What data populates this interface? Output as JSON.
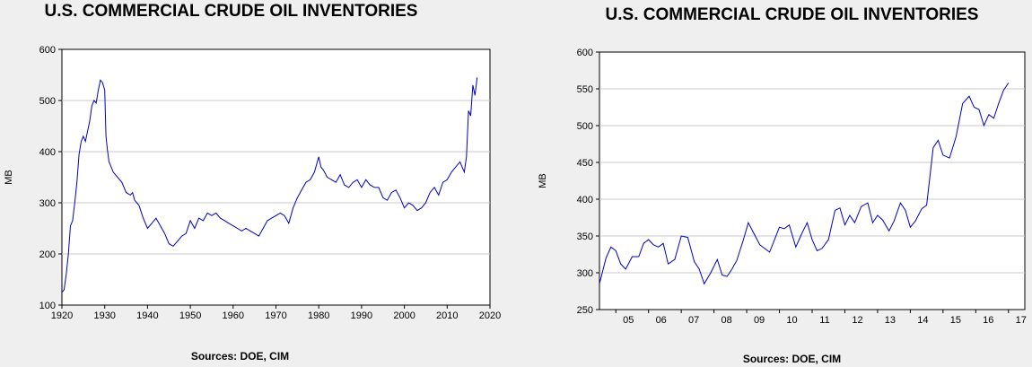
{
  "chart_data": [
    {
      "type": "line",
      "title": "U.S. COMMERCIAL CRUDE OIL INVENTORIES",
      "xlabel": "",
      "ylabel": "MB",
      "source": "Sources:  DOE, CIM",
      "xlim": [
        1920,
        2020
      ],
      "ylim": [
        100,
        600
      ],
      "x_ticks": [
        1920,
        1930,
        1940,
        1950,
        1960,
        1970,
        1980,
        1990,
        2000,
        2010,
        2020
      ],
      "y_ticks": [
        100,
        200,
        300,
        400,
        500,
        600
      ],
      "grid": true,
      "line_color": "#0000c0",
      "series": [
        {
          "x": [
            1920,
            1920.5,
            1921,
            1921.5,
            1922,
            1922.5,
            1923,
            1923.5,
            1924,
            1924.5,
            1925,
            1925.5,
            1926,
            1926.5,
            1927,
            1927.5,
            1928,
            1928.5,
            1929,
            1929.5,
            1930,
            1930.3,
            1930.6,
            1931,
            1931.5,
            1932,
            1932.5,
            1933,
            1934,
            1935,
            1936,
            1936.5,
            1937,
            1938,
            1939,
            1940,
            1941,
            1942,
            1943,
            1944,
            1945,
            1946,
            1947,
            1948,
            1949,
            1950,
            1951,
            1952,
            1953,
            1954,
            1955,
            1956,
            1957,
            1958,
            1959,
            1960,
            1961,
            1962,
            1963,
            1964,
            1965,
            1966,
            1967,
            1968,
            1969,
            1970,
            1971,
            1972,
            1973,
            1974,
            1975,
            1976,
            1977,
            1978,
            1979,
            1980,
            1980.5,
            1981,
            1982,
            1983,
            1984,
            1985,
            1986,
            1987,
            1988,
            1989,
            1990,
            1991,
            1992,
            1993,
            1994,
            1995,
            1996,
            1997,
            1998,
            1999,
            2000,
            2001,
            2002,
            2003,
            2004,
            2005,
            2006,
            2007,
            2008,
            2009,
            2010,
            2011,
            2012,
            2013,
            2014,
            2014.5,
            2015,
            2015.5,
            2016,
            2016.5,
            2017
          ],
          "values": [
            125,
            130,
            160,
            200,
            255,
            265,
            300,
            340,
            395,
            420,
            430,
            420,
            440,
            460,
            490,
            500,
            495,
            520,
            540,
            535,
            520,
            430,
            405,
            380,
            370,
            360,
            355,
            350,
            340,
            320,
            315,
            320,
            305,
            295,
            270,
            250,
            260,
            270,
            255,
            240,
            220,
            215,
            225,
            235,
            240,
            265,
            250,
            270,
            265,
            280,
            275,
            280,
            270,
            265,
            260,
            255,
            250,
            245,
            250,
            245,
            240,
            235,
            250,
            265,
            270,
            275,
            280,
            275,
            260,
            290,
            310,
            325,
            340,
            345,
            360,
            390,
            370,
            365,
            350,
            345,
            340,
            355,
            335,
            330,
            340,
            345,
            330,
            345,
            335,
            330,
            330,
            310,
            305,
            320,
            325,
            310,
            290,
            300,
            295,
            285,
            290,
            300,
            320,
            330,
            315,
            340,
            345,
            360,
            370,
            380,
            360,
            390,
            480,
            470,
            530,
            510,
            545
          ]
        }
      ]
    },
    {
      "type": "line",
      "title": "U.S. COMMERCIAL CRUDE OIL INVENTORIES",
      "xlabel": "",
      "ylabel": "MB",
      "source": "Sources:  DOE, CIM",
      "xlim": [
        2004.5,
        2017.5
      ],
      "ylim": [
        250,
        600
      ],
      "x_ticks": [
        2005,
        2006,
        2007,
        2008,
        2009,
        2010,
        2011,
        2012,
        2013,
        2014,
        2015,
        2016,
        2017
      ],
      "x_tick_labels": [
        "05",
        "06",
        "07",
        "08",
        "09",
        "10",
        "11",
        "12",
        "13",
        "14",
        "15",
        "16",
        "17"
      ],
      "y_ticks": [
        250,
        300,
        350,
        400,
        450,
        500,
        550,
        600
      ],
      "grid": true,
      "line_color": "#0000c0",
      "series": [
        {
          "x": [
            2004.5,
            2004.7,
            2004.85,
            2005.0,
            2005.15,
            2005.3,
            2005.5,
            2005.7,
            2005.85,
            2006.0,
            2006.15,
            2006.3,
            2006.45,
            2006.6,
            2006.8,
            2007.0,
            2007.2,
            2007.4,
            2007.55,
            2007.7,
            2007.9,
            2008.1,
            2008.25,
            2008.4,
            2008.55,
            2008.7,
            2008.9,
            2009.05,
            2009.2,
            2009.4,
            2009.55,
            2009.7,
            2009.85,
            2010.0,
            2010.15,
            2010.3,
            2010.5,
            2010.7,
            2010.85,
            2011.0,
            2011.15,
            2011.3,
            2011.5,
            2011.7,
            2011.85,
            2012.0,
            2012.15,
            2012.3,
            2012.5,
            2012.7,
            2012.85,
            2013.0,
            2013.15,
            2013.35,
            2013.5,
            2013.7,
            2013.85,
            2014.0,
            2014.15,
            2014.35,
            2014.5,
            2014.7,
            2014.85,
            2015.0,
            2015.2,
            2015.4,
            2015.6,
            2015.8,
            2015.95,
            2016.1,
            2016.25,
            2016.4,
            2016.55,
            2016.7,
            2016.85,
            2017.0
          ],
          "values": [
            285,
            320,
            335,
            330,
            312,
            305,
            322,
            322,
            340,
            345,
            338,
            335,
            340,
            312,
            318,
            350,
            348,
            315,
            305,
            285,
            300,
            318,
            297,
            295,
            305,
            317,
            345,
            368,
            355,
            338,
            333,
            328,
            345,
            362,
            360,
            365,
            335,
            355,
            368,
            345,
            330,
            333,
            345,
            385,
            388,
            365,
            378,
            368,
            390,
            395,
            368,
            378,
            372,
            357,
            370,
            395,
            385,
            362,
            370,
            387,
            392,
            470,
            480,
            460,
            456,
            485,
            530,
            540,
            525,
            522,
            500,
            515,
            510,
            530,
            548,
            558
          ]
        }
      ]
    }
  ]
}
